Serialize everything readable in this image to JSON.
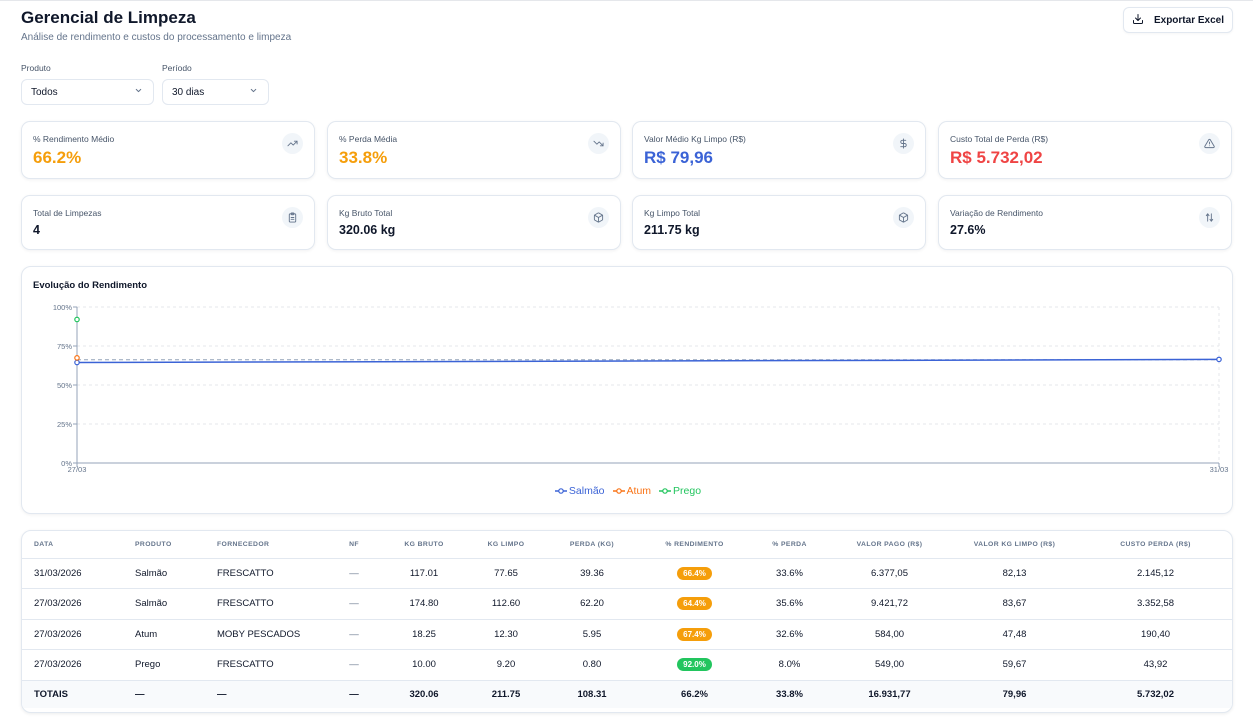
{
  "header": {
    "title": "Gerencial de Limpeza",
    "subtitle": "Análise de rendimento e custos do processamento e limpeza",
    "export_label": "Exportar Excel"
  },
  "filters": {
    "produto": {
      "label": "Produto",
      "value": "Todos"
    },
    "periodo": {
      "label": "Período",
      "value": "30 dias"
    }
  },
  "kpis": [
    {
      "label": "% Rendimento Médio",
      "value": "66.2%",
      "color": "#f59e0b",
      "icon": "trending-up-icon"
    },
    {
      "label": "% Perda Média",
      "value": "33.8%",
      "color": "#f59e0b",
      "icon": "trending-down-icon"
    },
    {
      "label": "Valor Médio Kg Limpo (R$)",
      "value": "R$ 79,96",
      "color": "#3b63d6",
      "icon": "dollar-icon"
    },
    {
      "label": "Custo Total de Perda (R$)",
      "value": "R$ 5.732,02",
      "color": "#ef4444",
      "icon": "alert-triangle-icon"
    }
  ],
  "stats": [
    {
      "label": "Total de Limpezas",
      "value": "4",
      "icon": "clipboard-icon"
    },
    {
      "label": "Kg Bruto Total",
      "value": "320.06 kg",
      "icon": "package-icon"
    },
    {
      "label": "Kg Limpo Total",
      "value": "211.75 kg",
      "icon": "package-icon"
    },
    {
      "label": "Variação de Rendimento",
      "value": "27.6%",
      "icon": "arrows-up-down-icon"
    }
  ],
  "chart_data": {
    "type": "line",
    "title": "Evolução do Rendimento",
    "x": [
      "27/03",
      "31/03"
    ],
    "ylim": [
      0,
      100
    ],
    "y_ticks": [
      "0%",
      "25%",
      "50%",
      "75%",
      "100%"
    ],
    "grid": true,
    "legend_position": "bottom",
    "series": [
      {
        "name": "Salmão",
        "color": "#3b63d6",
        "values": [
          64.4,
          66.4
        ]
      },
      {
        "name": "Atum",
        "color": "#f97316",
        "values": [
          67.4,
          null
        ]
      },
      {
        "name": "Prego",
        "color": "#22c55e",
        "values": [
          92.0,
          null
        ]
      }
    ],
    "reference_line": 66.2
  },
  "table": {
    "columns": [
      "Data",
      "Produto",
      "Fornecedor",
      "NF",
      "Kg Bruto",
      "Kg Limpo",
      "Perda (Kg)",
      "% Rendimento",
      "% Perda",
      "Valor Pago (R$)",
      "Valor Kg Limpo (R$)",
      "Custo Perda (R$)"
    ],
    "rows": [
      {
        "data": "31/03/2026",
        "produto": "Salmão",
        "fornecedor": "FRESCATTO",
        "nf": "—",
        "kg_bruto": "117.01",
        "kg_limpo": "77.65",
        "perda": "39.36",
        "rendimento": "66.4%",
        "rend_color": "#f59e0b",
        "perc_perda": "33.6%",
        "valor_pago": "6.377,05",
        "valor_kg_limpo": "82,13",
        "custo_perda": "2.145,12"
      },
      {
        "data": "27/03/2026",
        "produto": "Salmão",
        "fornecedor": "FRESCATTO",
        "nf": "—",
        "kg_bruto": "174.80",
        "kg_limpo": "112.60",
        "perda": "62.20",
        "rendimento": "64.4%",
        "rend_color": "#f59e0b",
        "perc_perda": "35.6%",
        "valor_pago": "9.421,72",
        "valor_kg_limpo": "83,67",
        "custo_perda": "3.352,58"
      },
      {
        "data": "27/03/2026",
        "produto": "Atum",
        "fornecedor": "MOBY PESCADOS",
        "nf": "—",
        "kg_bruto": "18.25",
        "kg_limpo": "12.30",
        "perda": "5.95",
        "rendimento": "67.4%",
        "rend_color": "#f59e0b",
        "perc_perda": "32.6%",
        "valor_pago": "584,00",
        "valor_kg_limpo": "47,48",
        "custo_perda": "190,40"
      },
      {
        "data": "27/03/2026",
        "produto": "Prego",
        "fornecedor": "FRESCATTO",
        "nf": "—",
        "kg_bruto": "10.00",
        "kg_limpo": "9.20",
        "perda": "0.80",
        "rendimento": "92.0%",
        "rend_color": "#22c55e",
        "perc_perda": "8.0%",
        "valor_pago": "549,00",
        "valor_kg_limpo": "59,67",
        "custo_perda": "43,92"
      }
    ],
    "totals": {
      "label": "TOTAIS",
      "produto": "—",
      "fornecedor": "—",
      "nf": "—",
      "kg_bruto": "320.06",
      "kg_limpo": "211.75",
      "perda": "108.31",
      "rendimento": "66.2%",
      "perc_perda": "33.8%",
      "valor_pago": "16.931,77",
      "valor_kg_limpo": "79,96",
      "custo_perda": "5.732,02"
    }
  }
}
